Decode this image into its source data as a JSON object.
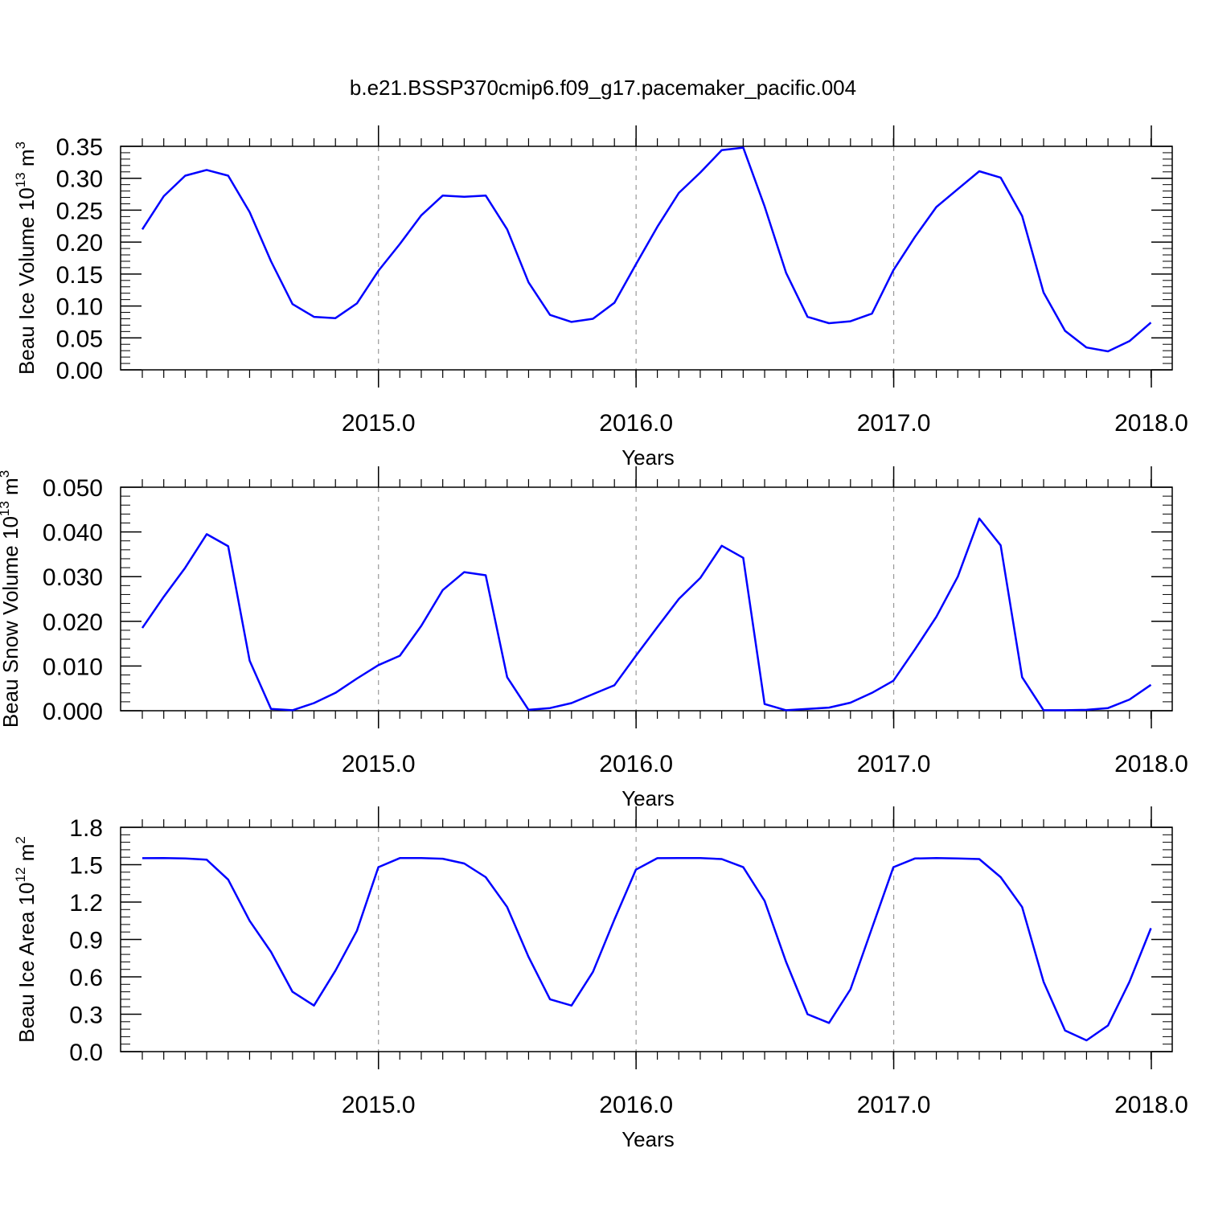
{
  "title": "b.e21.BSSP370cmip6.f09_g17.pacemaker_pacific.004",
  "colors": {
    "line": "#0000ff",
    "axis": "#000000",
    "grid": "#999999",
    "background": "#ffffff"
  },
  "chart_data": [
    {
      "type": "line",
      "ylabel": "Beau Ice Volume 10",
      "ylabel_exp": "13",
      "ylabel_unit": " m",
      "ylabel_unit_exp": "3",
      "xlabel": "Years",
      "xlim": [
        2014.0833,
        2018.0
      ],
      "ylim": [
        0,
        0.35
      ],
      "x_ticks": [
        2015.0,
        2016.0,
        2017.0,
        2018.0
      ],
      "x_tick_labels": [
        "2015.0",
        "2016.0",
        "2017.0",
        "2018.0"
      ],
      "y_ticks": [
        0,
        0.05,
        0.1,
        0.15,
        0.2,
        0.25,
        0.3,
        0.35
      ],
      "y_tick_labels": [
        "0.00",
        "0.05",
        "0.10",
        "0.15",
        "0.20",
        "0.25",
        "0.30",
        "0.35"
      ],
      "grid": "vertical dashed at major x ticks",
      "x_start": 2014.0833,
      "x_step": 0.0833,
      "values": [
        0.22,
        0.272,
        0.304,
        0.313,
        0.304,
        0.247,
        0.17,
        0.103,
        0.083,
        0.081,
        0.104,
        0.155,
        0.197,
        0.242,
        0.273,
        0.271,
        0.273,
        0.22,
        0.137,
        0.086,
        0.075,
        0.08,
        0.105,
        0.165,
        0.224,
        0.277,
        0.309,
        0.344,
        0.348,
        0.256,
        0.152,
        0.083,
        0.073,
        0.076,
        0.088,
        0.156,
        0.208,
        0.255,
        0.283,
        0.311,
        0.301,
        0.241,
        0.121,
        0.061,
        0.035,
        0.029,
        0.045,
        0.074
      ]
    },
    {
      "type": "line",
      "ylabel": "Beau Snow Volume 10",
      "ylabel_exp": "13",
      "ylabel_unit": " m",
      "ylabel_unit_exp": "3",
      "xlabel": "Years",
      "xlim": [
        2014.0833,
        2018.0
      ],
      "ylim": [
        0,
        0.05
      ],
      "x_ticks": [
        2015.0,
        2016.0,
        2017.0,
        2018.0
      ],
      "x_tick_labels": [
        "2015.0",
        "2016.0",
        "2017.0",
        "2018.0"
      ],
      "y_ticks": [
        0,
        0.01,
        0.02,
        0.03,
        0.04,
        0.05
      ],
      "y_tick_labels": [
        "0.000",
        "0.010",
        "0.020",
        "0.030",
        "0.040",
        "0.050"
      ],
      "grid": "vertical dashed at major x ticks",
      "x_start": 2014.0833,
      "x_step": 0.0833,
      "values": [
        0.0185,
        0.0255,
        0.032,
        0.0395,
        0.0368,
        0.0112,
        0.0004,
        0.0001,
        0.0017,
        0.004,
        0.0072,
        0.0102,
        0.0123,
        0.019,
        0.027,
        0.031,
        0.0303,
        0.0075,
        0.0002,
        0.0006,
        0.0017,
        0.0037,
        0.0057,
        0.0123,
        0.0187,
        0.025,
        0.0297,
        0.0369,
        0.0342,
        0.0015,
        0.0001,
        0.0004,
        0.0007,
        0.0018,
        0.004,
        0.0067,
        0.0137,
        0.021,
        0.03,
        0.043,
        0.037,
        0.0075,
        0.0001,
        0.0001,
        0.0002,
        0.0006,
        0.0025,
        0.0058
      ]
    },
    {
      "type": "line",
      "ylabel": "Beau Ice Area 10",
      "ylabel_exp": "12",
      "ylabel_unit": " m",
      "ylabel_unit_exp": "2",
      "xlabel": "Years",
      "xlim": [
        2014.0833,
        2018.0
      ],
      "ylim": [
        0,
        1.8
      ],
      "x_ticks": [
        2015.0,
        2016.0,
        2017.0,
        2018.0
      ],
      "x_tick_labels": [
        "2015.0",
        "2016.0",
        "2017.0",
        "2018.0"
      ],
      "y_ticks": [
        0,
        0.3,
        0.6,
        0.9,
        1.2,
        1.5,
        1.8
      ],
      "y_tick_labels": [
        "0.0",
        "0.3",
        "0.6",
        "0.9",
        "1.2",
        "1.5",
        "1.8"
      ],
      "grid": "vertical dashed at major x ticks",
      "x_start": 2014.0833,
      "x_step": 0.0833,
      "values": [
        1.552,
        1.553,
        1.55,
        1.54,
        1.38,
        1.05,
        0.8,
        0.48,
        0.37,
        0.65,
        0.97,
        1.48,
        1.553,
        1.553,
        1.548,
        1.51,
        1.4,
        1.16,
        0.76,
        0.42,
        0.37,
        0.64,
        1.06,
        1.46,
        1.552,
        1.553,
        1.553,
        1.545,
        1.48,
        1.21,
        0.72,
        0.3,
        0.23,
        0.5,
        0.99,
        1.48,
        1.55,
        1.553,
        1.55,
        1.545,
        1.4,
        1.16,
        0.56,
        0.17,
        0.09,
        0.21,
        0.56,
        0.99
      ]
    }
  ]
}
